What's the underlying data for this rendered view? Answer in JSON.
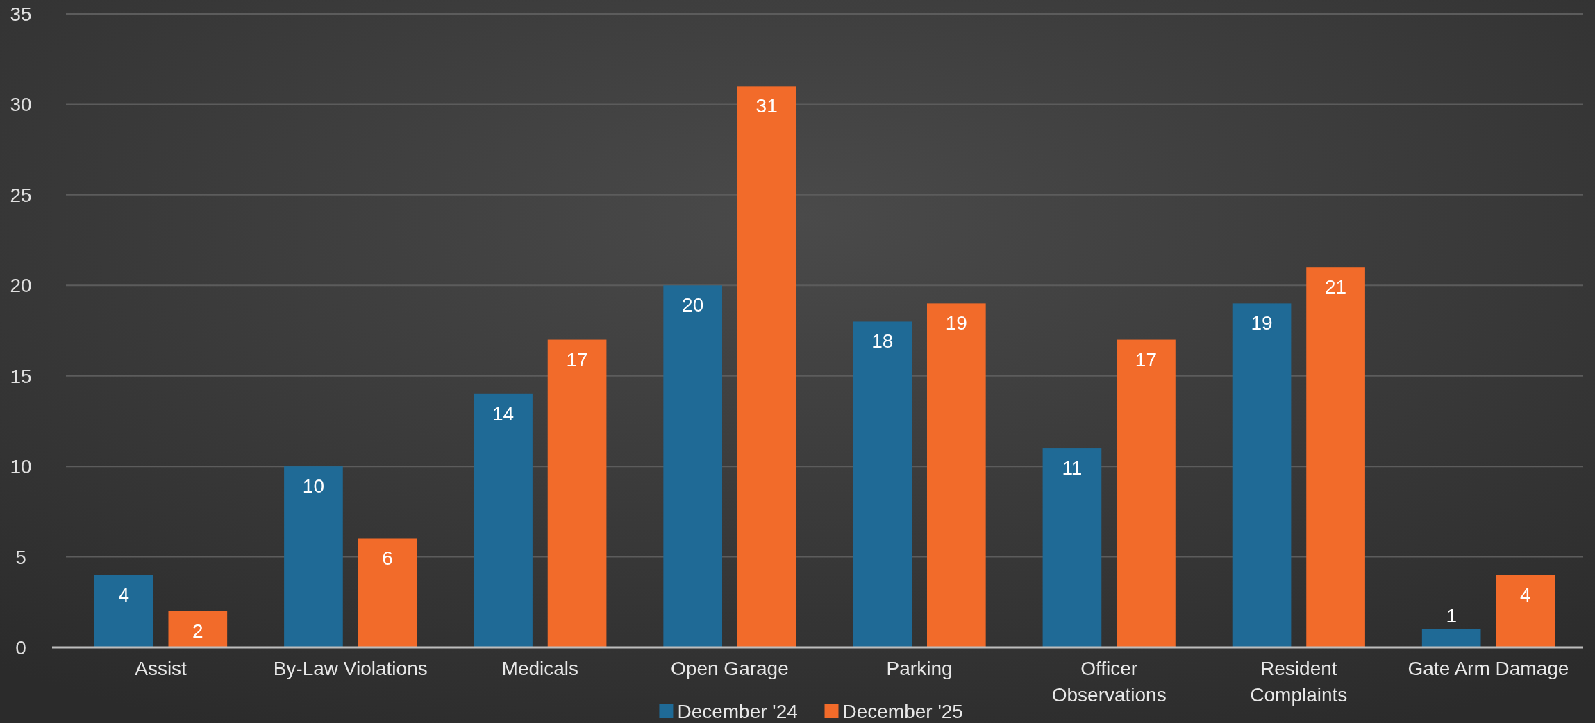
{
  "chart_data": {
    "type": "bar",
    "categories": [
      "Assist",
      "By-Law Violations",
      "Medicals",
      "Open Garage",
      "Parking",
      "Officer Observations",
      "Resident Complaints",
      "Gate Arm Damage"
    ],
    "series": [
      {
        "name": "December '24",
        "color": "#1f6a96",
        "values": [
          4,
          10,
          14,
          20,
          18,
          11,
          19,
          1
        ]
      },
      {
        "name": "December '25",
        "color": "#f26b2a",
        "values": [
          2,
          6,
          17,
          31,
          19,
          17,
          21,
          4
        ]
      }
    ],
    "ylim": [
      0,
      35
    ],
    "yticks": [
      0,
      5,
      10,
      15,
      20,
      25,
      30,
      35
    ],
    "grid": "y",
    "legend": "bottom",
    "data_labels": true
  }
}
